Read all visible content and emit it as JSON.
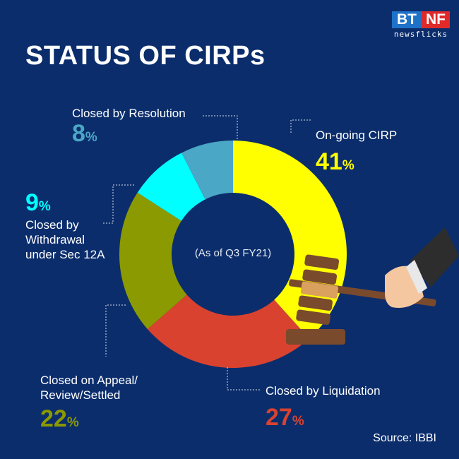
{
  "title": "STATUS OF CIRPs",
  "logo": {
    "left": "BT",
    "right": "NF",
    "sub": "newsflicks"
  },
  "source": "Source: IBBI",
  "chart_data": {
    "type": "pie",
    "donut": true,
    "center_label": "(As of  Q3 FY21)",
    "slices": [
      {
        "label": "On-going CIRP",
        "value": 41,
        "display": "41",
        "color": "#ffff00"
      },
      {
        "label": "Closed by Liquidation",
        "value": 27,
        "display": "27",
        "color": "#d9422f"
      },
      {
        "label": "Closed on Appeal/ Review/Settled",
        "value": 22,
        "display": "22",
        "color": "#8b9a00"
      },
      {
        "label": "Closed by Withdrawal under Sec 12A",
        "value": 9,
        "display": "9",
        "color": "#00ffff"
      },
      {
        "label": "Closed by Resolution",
        "value": 8,
        "display": "8",
        "color": "#4aa7c5"
      }
    ],
    "unit": "%"
  }
}
